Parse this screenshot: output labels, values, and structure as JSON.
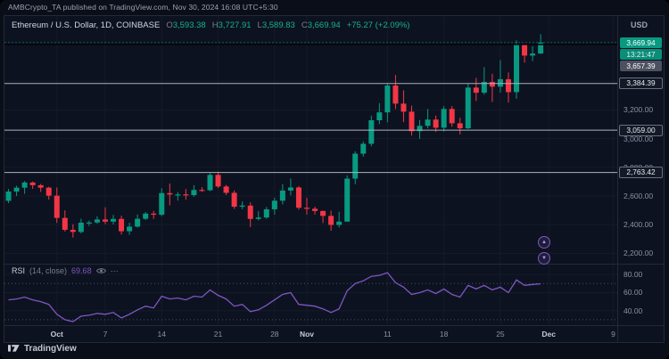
{
  "colors": {
    "up": "#089981",
    "down": "#f23645",
    "legend_value": "#17b28a",
    "rsi": "#7e57c2",
    "sr_line": "#aeb3bf",
    "text_muted": "#8b92a3"
  },
  "attribution": "AMBCrypto_TA published on TradingView.com, Nov 30, 2024 16:08 UTC+5:30",
  "legend": {
    "symbol": "Ethereum / U.S. Dollar, 1D, COINBASE",
    "o_label": "O",
    "o_value": "3,593.38",
    "h_label": "H",
    "h_value": "3,727.91",
    "l_label": "L",
    "l_value": "3,589.83",
    "c_label": "C",
    "c_value": "3,669.94",
    "change": "+75.27 (+2.09%)"
  },
  "price_axis": {
    "currency": "USD",
    "last_price_label": "3,669.94",
    "countdown_label": "13:21:47",
    "secondary_label": "3,657.39"
  },
  "rsi_legend": {
    "title": "RSI",
    "params": "(14, close)",
    "value": "69.68",
    "more_icon": "⋯"
  },
  "markers": {
    "up_glyph": "▲",
    "down_glyph": "▼"
  },
  "footer": {
    "brand": "TradingView"
  },
  "chart_data": {
    "type": "candlestick",
    "title": "Ethereum / U.S. Dollar, 1D, COINBASE",
    "ylim": [
      2165,
      3830
    ],
    "total_slots": 76,
    "last_price": 3669.94,
    "black_line_price": 3657.39,
    "price_gridlines": [
      3400,
      3200,
      3000,
      2800,
      2600,
      2400,
      2200
    ],
    "price_tick_labels": [
      {
        "price": 3200,
        "label": "3,200.00"
      },
      {
        "price": 3000,
        "label": "3,000.00"
      },
      {
        "price": 2800,
        "label": "2,800.00"
      },
      {
        "price": 2600,
        "label": "2,600.00"
      },
      {
        "price": 2400,
        "label": "2,400.00"
      },
      {
        "price": 2200,
        "label": "2,200.00"
      }
    ],
    "hlines": [
      {
        "price": 3384.39,
        "label": "3,384.39"
      },
      {
        "price": 3059.0,
        "label": "3,059.00"
      },
      {
        "price": 2763.42,
        "label": "2,763.42"
      }
    ],
    "time_labels": [
      {
        "label": "Oct",
        "i": 6,
        "month": true
      },
      {
        "label": "7",
        "i": 12
      },
      {
        "label": "14",
        "i": 19
      },
      {
        "label": "21",
        "i": 26
      },
      {
        "label": "28",
        "i": 33
      },
      {
        "label": "Nov",
        "i": 37,
        "month": true
      },
      {
        "label": "11",
        "i": 47
      },
      {
        "label": "18",
        "i": 54
      },
      {
        "label": "25",
        "i": 61
      },
      {
        "label": "Dec",
        "i": 67,
        "month": true
      },
      {
        "label": "9",
        "i": 75
      }
    ],
    "ohlc": [
      [
        2566,
        2648,
        2550,
        2631
      ],
      [
        2631,
        2671,
        2600,
        2658
      ],
      [
        2658,
        2704,
        2615,
        2694
      ],
      [
        2694,
        2700,
        2650,
        2675
      ],
      [
        2675,
        2684,
        2628,
        2658
      ],
      [
        2658,
        2664,
        2575,
        2602
      ],
      [
        2602,
        2659,
        2412,
        2447
      ],
      [
        2447,
        2500,
        2352,
        2364
      ],
      [
        2364,
        2403,
        2310,
        2349
      ],
      [
        2349,
        2441,
        2339,
        2414
      ],
      [
        2414,
        2428,
        2391,
        2415
      ],
      [
        2415,
        2459,
        2407,
        2436
      ],
      [
        2436,
        2521,
        2403,
        2421
      ],
      [
        2421,
        2468,
        2401,
        2440
      ],
      [
        2440,
        2462,
        2331,
        2354
      ],
      [
        2354,
        2414,
        2329,
        2386
      ],
      [
        2386,
        2471,
        2380,
        2441
      ],
      [
        2441,
        2488,
        2432,
        2477
      ],
      [
        2477,
        2496,
        2440,
        2469
      ],
      [
        2469,
        2654,
        2459,
        2620
      ],
      [
        2620,
        2687,
        2534,
        2610
      ],
      [
        2610,
        2628,
        2568,
        2611
      ],
      [
        2611,
        2648,
        2575,
        2606
      ],
      [
        2606,
        2675,
        2594,
        2642
      ],
      [
        2642,
        2661,
        2630,
        2640
      ],
      [
        2640,
        2759,
        2634,
        2747
      ],
      [
        2747,
        2769,
        2655,
        2666
      ],
      [
        2666,
        2677,
        2606,
        2622
      ],
      [
        2622,
        2638,
        2510,
        2525
      ],
      [
        2525,
        2562,
        2508,
        2533
      ],
      [
        2533,
        2556,
        2383,
        2440
      ],
      [
        2440,
        2494,
        2430,
        2450
      ],
      [
        2450,
        2523,
        2440,
        2507
      ],
      [
        2507,
        2588,
        2470,
        2567
      ],
      [
        2567,
        2683,
        2541,
        2638
      ],
      [
        2638,
        2722,
        2605,
        2659
      ],
      [
        2659,
        2669,
        2505,
        2518
      ],
      [
        2518,
        2588,
        2470,
        2511
      ],
      [
        2511,
        2525,
        2470,
        2495
      ],
      [
        2495,
        2498,
        2411,
        2461
      ],
      [
        2461,
        2497,
        2357,
        2398
      ],
      [
        2398,
        2490,
        2380,
        2421
      ],
      [
        2421,
        2744,
        2420,
        2721
      ],
      [
        2721,
        2912,
        2682,
        2895
      ],
      [
        2895,
        2981,
        2873,
        2964
      ],
      [
        2964,
        3160,
        2947,
        3128
      ],
      [
        3128,
        3247,
        3101,
        3183
      ],
      [
        3183,
        3389,
        3113,
        3370
      ],
      [
        3370,
        3444,
        3207,
        3244
      ],
      [
        3244,
        3337,
        3115,
        3188
      ],
      [
        3188,
        3230,
        3021,
        3052
      ],
      [
        3052,
        3130,
        2998,
        3089
      ],
      [
        3089,
        3207,
        3071,
        3133
      ],
      [
        3133,
        3161,
        3047,
        3076
      ],
      [
        3076,
        3226,
        3050,
        3207
      ],
      [
        3207,
        3227,
        3083,
        3107
      ],
      [
        3107,
        3145,
        3029,
        3072
      ],
      [
        3072,
        3383,
        3066,
        3356
      ],
      [
        3356,
        3424,
        3262,
        3320
      ],
      [
        3320,
        3498,
        3306,
        3395
      ],
      [
        3395,
        3452,
        3255,
        3362
      ],
      [
        3362,
        3547,
        3321,
        3414
      ],
      [
        3414,
        3462,
        3251,
        3324
      ],
      [
        3324,
        3685,
        3278,
        3653
      ],
      [
        3653,
        3661,
        3530,
        3579
      ],
      [
        3579,
        3645,
        3541,
        3593
      ],
      [
        3593.38,
        3727.91,
        3589.83,
        3669.94
      ]
    ],
    "rsi": {
      "values": [
        52,
        53,
        55,
        52,
        50,
        47,
        36,
        30,
        28,
        34,
        35,
        37,
        36,
        38,
        32,
        36,
        41,
        45,
        43,
        56,
        53,
        54,
        52,
        56,
        55,
        63,
        57,
        53,
        45,
        47,
        39,
        41,
        46,
        52,
        58,
        60,
        47,
        46,
        45,
        42,
        38,
        42,
        62,
        70,
        73,
        78,
        79,
        82,
        71,
        66,
        58,
        60,
        63,
        59,
        64,
        58,
        55,
        68,
        64,
        68,
        63,
        66,
        60,
        74,
        68,
        69,
        69.68
      ],
      "tick_labels": [
        {
          "value": 80,
          "label": "80.00"
        },
        {
          "value": 60,
          "label": "60.00"
        },
        {
          "value": 40,
          "label": "40.00"
        }
      ],
      "bands": [
        70,
        30
      ]
    }
  }
}
